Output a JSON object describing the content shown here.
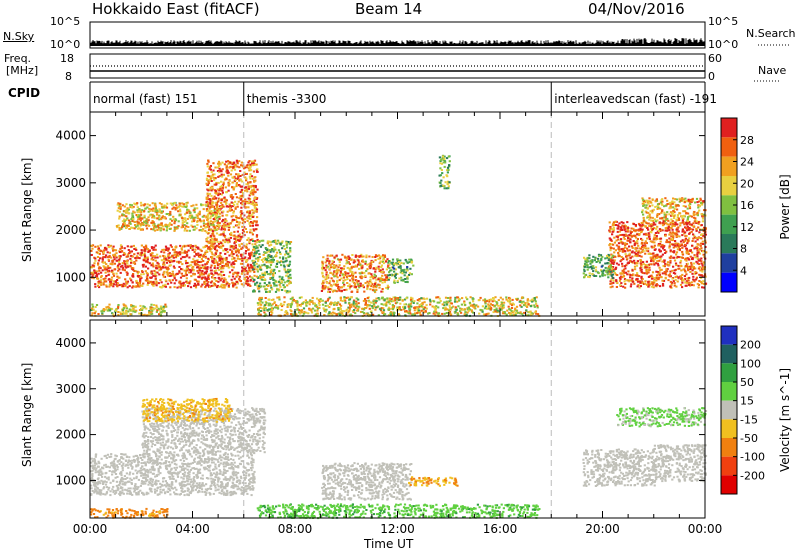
{
  "header": {
    "station": "Hokkaido East (fitACF)",
    "beam": "Beam 14",
    "date": "04/Nov/2016"
  },
  "strips": {
    "nsky_label": "N.Sky",
    "nsky_ticks": [
      "10^5",
      "10^0"
    ],
    "nsky_right_ticks": [
      "10^5",
      "10^0"
    ],
    "nsearch_label": "N.Search",
    "freq_label_1": "Freq.",
    "freq_label_2": "[MHz]",
    "freq_ticks": [
      "18",
      "8"
    ],
    "nave_ticks": [
      "60",
      "0"
    ],
    "nave_label": "Nave",
    "cpid_label": "CPID"
  },
  "cpid_segments": [
    {
      "label": "normal (fast) 151",
      "start_hour": 0,
      "end_hour": 6.0
    },
    {
      "label": "themis -3300",
      "start_hour": 6.0,
      "end_hour": 18.0
    },
    {
      "label": "interleavedscan (fast) -191",
      "start_hour": 18.0,
      "end_hour": 24.0
    }
  ],
  "x_axis": {
    "label": "Time UT",
    "ticks": [
      "00:00",
      "04:00",
      "08:00",
      "12:00",
      "16:00",
      "20:00",
      "00:00"
    ]
  },
  "chart_data": [
    {
      "type": "heatmap",
      "title": "",
      "xlabel": "Time UT",
      "ylabel": "Slant Range [km]",
      "x_range_hours": [
        0,
        24
      ],
      "ylim": [
        180,
        4500
      ],
      "yticks": [
        "4000",
        "3000",
        "2000",
        "1000"
      ],
      "ytick_values": [
        4000,
        3000,
        2000,
        1000
      ],
      "colorbar_label": "Power [dB]",
      "colorbar_ticks": [
        "28",
        "24",
        "20",
        "16",
        "12",
        "8",
        "4"
      ],
      "colorbar_tick_values": [
        28,
        24,
        20,
        16,
        12,
        8,
        4
      ],
      "colorbar_range": [
        0,
        32
      ],
      "colorbar_colors": [
        "#0000ff",
        "#1f3f9f",
        "#2a7a5a",
        "#3fa050",
        "#80c040",
        "#e8d040",
        "#f0a020",
        "#f06010",
        "#e02020"
      ],
      "regions": [
        {
          "x0": 0.0,
          "x1": 6.4,
          "y0": 800,
          "y1": 1700,
          "value": 27
        },
        {
          "x0": 4.5,
          "x1": 6.5,
          "y0": 1700,
          "y1": 3500,
          "value": 25
        },
        {
          "x0": 1.0,
          "x1": 5.0,
          "y0": 2000,
          "y1": 2600,
          "value": 21
        },
        {
          "x0": 6.3,
          "x1": 7.8,
          "y0": 700,
          "y1": 1800,
          "value": 16
        },
        {
          "x0": 9.0,
          "x1": 11.6,
          "y0": 700,
          "y1": 1500,
          "value": 24
        },
        {
          "x0": 11.6,
          "x1": 12.6,
          "y0": 900,
          "y1": 1400,
          "value": 14
        },
        {
          "x0": 6.5,
          "x1": 17.5,
          "y0": 200,
          "y1": 600,
          "value": 20
        },
        {
          "x0": 13.6,
          "x1": 14.0,
          "y0": 2900,
          "y1": 3600,
          "value": 14
        },
        {
          "x0": 20.2,
          "x1": 24.0,
          "y0": 800,
          "y1": 2200,
          "value": 27
        },
        {
          "x0": 21.5,
          "x1": 24.0,
          "y0": 2200,
          "y1": 2700,
          "value": 22
        },
        {
          "x0": 19.2,
          "x1": 20.4,
          "y0": 1000,
          "y1": 1500,
          "value": 14
        },
        {
          "x0": 0.0,
          "x1": 3.0,
          "y0": 200,
          "y1": 450,
          "value": 20
        }
      ]
    },
    {
      "type": "heatmap",
      "title": "",
      "xlabel": "Time UT",
      "ylabel": "Slant Range [km]",
      "x_range_hours": [
        0,
        24
      ],
      "ylim": [
        180,
        4500
      ],
      "yticks": [
        "4000",
        "3000",
        "2000",
        "1000"
      ],
      "ytick_values": [
        4000,
        3000,
        2000,
        1000
      ],
      "colorbar_label": "Velocity [m s^-1]",
      "colorbar_ticks": [
        "200",
        "100",
        "50",
        "15",
        "-15",
        "-50",
        "-100",
        "-200"
      ],
      "colorbar_tick_values": [
        200,
        100,
        50,
        15,
        -15,
        -50,
        -100,
        -200
      ],
      "colorbar_colors": [
        "#2030c0",
        "#206060",
        "#30a040",
        "#60d040",
        "#c0c0b8",
        "#f0c020",
        "#f08010",
        "#f04010",
        "#e00000"
      ],
      "regions": [
        {
          "x0": 0.0,
          "x1": 6.4,
          "y0": 700,
          "y1": 1600,
          "value": 0
        },
        {
          "x0": 2.0,
          "x1": 6.8,
          "y0": 1600,
          "y1": 2600,
          "value": 0
        },
        {
          "x0": 9.0,
          "x1": 12.5,
          "y0": 600,
          "y1": 1400,
          "value": 0
        },
        {
          "x0": 12.4,
          "x1": 14.3,
          "y0": 900,
          "y1": 1100,
          "value": -50
        },
        {
          "x0": 6.5,
          "x1": 17.5,
          "y0": 200,
          "y1": 500,
          "value": 40
        },
        {
          "x0": 19.2,
          "x1": 22.0,
          "y0": 900,
          "y1": 1700,
          "value": 0
        },
        {
          "x0": 22.0,
          "x1": 24.0,
          "y0": 1000,
          "y1": 1800,
          "value": 0
        },
        {
          "x0": 20.5,
          "x1": 24.0,
          "y0": 2200,
          "y1": 2600,
          "value": 20
        },
        {
          "x0": 0.0,
          "x1": 3.0,
          "y0": 200,
          "y1": 400,
          "value": -60
        },
        {
          "x0": 2.0,
          "x1": 5.5,
          "y0": 2300,
          "y1": 2800,
          "value": -40
        }
      ]
    }
  ]
}
